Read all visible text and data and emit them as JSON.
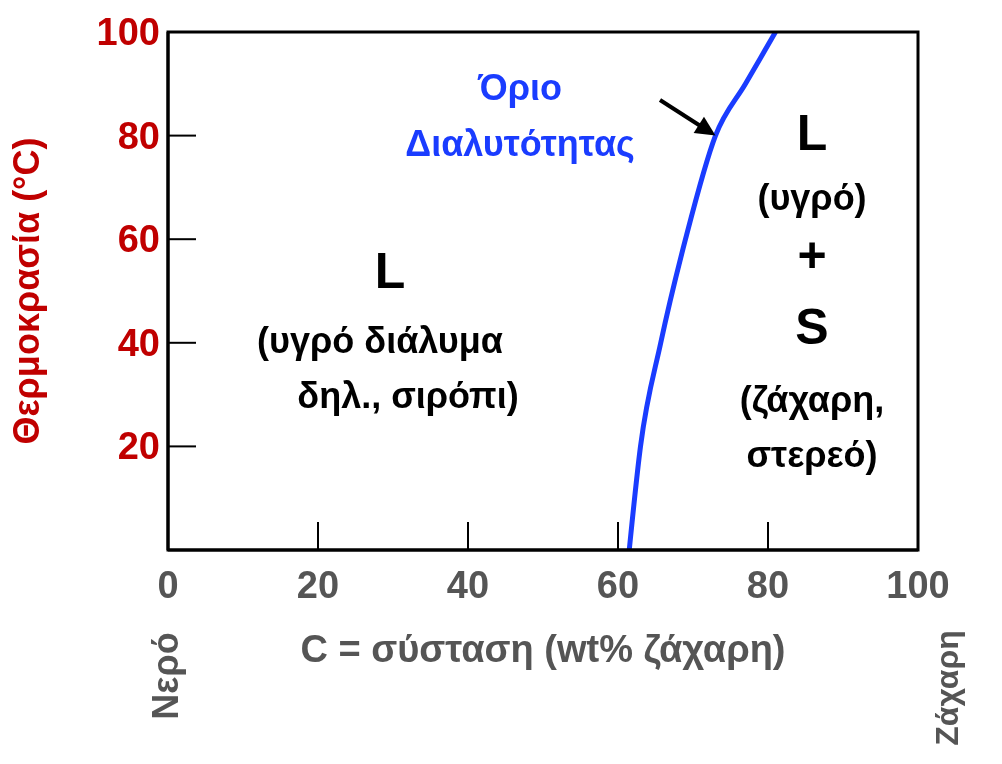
{
  "chart_data": {
    "type": "line",
    "xlabel": "C = σύσταση (wt% ζάχαρη)",
    "ylabel": "Θερμοκρασία  (°C)",
    "x": [
      61.5,
      63,
      65.7,
      69,
      73,
      77,
      81
    ],
    "series": [
      {
        "color": "#1a3cff",
        "values": [
          0,
          20,
          40,
          60,
          80,
          90,
          100
        ]
      }
    ],
    "xlim": [
      0,
      100
    ],
    "xticks": [
      0,
      20,
      40,
      60,
      80,
      100
    ],
    "ylim": [
      0,
      100
    ],
    "yticks": [
      20,
      40,
      60,
      80,
      100
    ],
    "marker": "none",
    "line_style": "solid",
    "annotations": [
      {
        "text": "Όριο\nΔιαλυτότητας",
        "x": 73,
        "y": 80
      },
      "L\n(υγρό διάλυμα\nδηλ., σιρόπι)",
      "L\n(υγρό)\n+\nS\n(ζάχαρη,\nστερεό)",
      "Νερό",
      "Ζάχαρη"
    ]
  }
}
